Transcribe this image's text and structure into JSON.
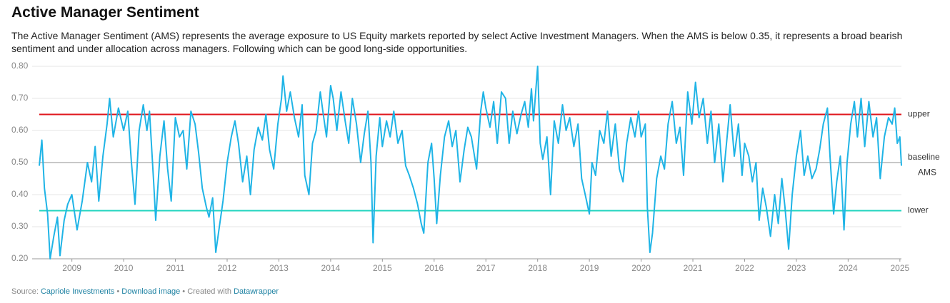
{
  "chart_data": {
    "type": "line",
    "title": "Active Manager Sentiment",
    "subtitle": "The Active Manager Sentiment (AMS) represents the average exposure to US Equity markets reported by select Active Investment Managers. When the AMS is below 0.35, it represents a broad bearish sentiment and under allocation across managers. Following which can be good long-side opportunities.",
    "footer": {
      "source_label": "Source:",
      "source": "Capriole Investments",
      "separator": "•",
      "download": "Download image",
      "credit_prefix": "Created with",
      "credit": "Datawrapper"
    },
    "x": [
      2008.37,
      2008.42,
      2008.47,
      2008.53,
      2008.58,
      2008.65,
      2008.72,
      2008.77,
      2008.85,
      2008.92,
      2009.0,
      2009.1,
      2009.2,
      2009.3,
      2009.38,
      2009.45,
      2009.52,
      2009.6,
      2009.68,
      2009.73,
      2009.8,
      2009.9,
      2010.0,
      2010.08,
      2010.15,
      2010.22,
      2010.3,
      2010.38,
      2010.45,
      2010.5,
      2010.58,
      2010.62,
      2010.7,
      2010.78,
      2010.85,
      2010.92,
      2011.0,
      2011.08,
      2011.15,
      2011.22,
      2011.3,
      2011.38,
      2011.45,
      2011.52,
      2011.6,
      2011.65,
      2011.72,
      2011.78,
      2011.85,
      2011.92,
      2012.0,
      2012.08,
      2012.15,
      2012.22,
      2012.3,
      2012.38,
      2012.45,
      2012.52,
      2012.6,
      2012.68,
      2012.75,
      2012.82,
      2012.9,
      2012.98,
      2013.05,
      2013.08,
      2013.15,
      2013.22,
      2013.3,
      2013.38,
      2013.45,
      2013.5,
      2013.58,
      2013.65,
      2013.72,
      2013.8,
      2013.85,
      2013.92,
      2014.0,
      2014.05,
      2014.12,
      2014.2,
      2014.28,
      2014.35,
      2014.42,
      2014.5,
      2014.58,
      2014.65,
      2014.72,
      2014.78,
      2014.82,
      2014.88,
      2014.95,
      2015.0,
      2015.08,
      2015.15,
      2015.22,
      2015.3,
      2015.38,
      2015.45,
      2015.52,
      2015.6,
      2015.68,
      2015.75,
      2015.8,
      2015.88,
      2015.95,
      2016.0,
      2016.05,
      2016.12,
      2016.2,
      2016.28,
      2016.35,
      2016.42,
      2016.5,
      2016.58,
      2016.65,
      2016.72,
      2016.82,
      2016.9,
      2016.95,
      2017.0,
      2017.08,
      2017.15,
      2017.22,
      2017.3,
      2017.38,
      2017.45,
      2017.52,
      2017.6,
      2017.68,
      2017.75,
      2017.82,
      2017.88,
      2017.92,
      2018.0,
      2018.05,
      2018.1,
      2018.18,
      2018.25,
      2018.32,
      2018.4,
      2018.48,
      2018.55,
      2018.62,
      2018.7,
      2018.78,
      2018.85,
      2018.92,
      2019.0,
      2019.05,
      2019.12,
      2019.2,
      2019.28,
      2019.35,
      2019.42,
      2019.5,
      2019.58,
      2019.65,
      2019.72,
      2019.8,
      2019.88,
      2019.95,
      2020.0,
      2020.08,
      2020.12,
      2020.17,
      2020.22,
      2020.3,
      2020.38,
      2020.45,
      2020.52,
      2020.6,
      2020.68,
      2020.75,
      2020.82,
      2020.9,
      2020.98,
      2021.05,
      2021.12,
      2021.2,
      2021.28,
      2021.35,
      2021.42,
      2021.5,
      2021.58,
      2021.65,
      2021.72,
      2021.8,
      2021.88,
      2021.95,
      2022.0,
      2022.08,
      2022.15,
      2022.22,
      2022.28,
      2022.35,
      2022.42,
      2022.5,
      2022.58,
      2022.65,
      2022.72,
      2022.78,
      2022.85,
      2022.92,
      2023.0,
      2023.08,
      2023.15,
      2023.22,
      2023.3,
      2023.38,
      2023.45,
      2023.52,
      2023.6,
      2023.65,
      2023.72,
      2023.78,
      2023.85,
      2023.92,
      2023.98,
      2024.05,
      2024.12,
      2024.18,
      2024.25,
      2024.32,
      2024.4,
      2024.48,
      2024.55,
      2024.62,
      2024.7,
      2024.78,
      2024.85,
      2024.9,
      2024.95,
      2025.0,
      2025.03
    ],
    "series": [
      {
        "name": "AMS",
        "color": "#1fb4e6",
        "values": [
          0.49,
          0.57,
          0.42,
          0.34,
          0.2,
          0.27,
          0.33,
          0.21,
          0.32,
          0.37,
          0.4,
          0.29,
          0.38,
          0.5,
          0.44,
          0.55,
          0.38,
          0.52,
          0.62,
          0.7,
          0.58,
          0.67,
          0.6,
          0.66,
          0.5,
          0.37,
          0.6,
          0.68,
          0.6,
          0.66,
          0.44,
          0.32,
          0.52,
          0.63,
          0.48,
          0.38,
          0.64,
          0.58,
          0.6,
          0.48,
          0.66,
          0.62,
          0.53,
          0.42,
          0.36,
          0.33,
          0.39,
          0.22,
          0.3,
          0.38,
          0.5,
          0.58,
          0.63,
          0.56,
          0.44,
          0.52,
          0.4,
          0.54,
          0.61,
          0.57,
          0.65,
          0.54,
          0.48,
          0.62,
          0.7,
          0.77,
          0.66,
          0.72,
          0.64,
          0.58,
          0.68,
          0.46,
          0.4,
          0.56,
          0.6,
          0.72,
          0.66,
          0.58,
          0.74,
          0.7,
          0.6,
          0.72,
          0.63,
          0.56,
          0.7,
          0.62,
          0.5,
          0.59,
          0.66,
          0.5,
          0.25,
          0.52,
          0.64,
          0.55,
          0.63,
          0.58,
          0.66,
          0.56,
          0.6,
          0.49,
          0.46,
          0.42,
          0.37,
          0.31,
          0.28,
          0.5,
          0.56,
          0.45,
          0.31,
          0.46,
          0.58,
          0.63,
          0.55,
          0.6,
          0.44,
          0.54,
          0.61,
          0.58,
          0.48,
          0.66,
          0.72,
          0.67,
          0.61,
          0.69,
          0.56,
          0.72,
          0.7,
          0.56,
          0.66,
          0.59,
          0.65,
          0.69,
          0.61,
          0.73,
          0.63,
          0.8,
          0.56,
          0.51,
          0.58,
          0.4,
          0.63,
          0.56,
          0.68,
          0.6,
          0.64,
          0.55,
          0.62,
          0.45,
          0.4,
          0.34,
          0.5,
          0.46,
          0.6,
          0.56,
          0.66,
          0.52,
          0.62,
          0.48,
          0.44,
          0.56,
          0.64,
          0.58,
          0.66,
          0.58,
          0.62,
          0.36,
          0.22,
          0.28,
          0.45,
          0.52,
          0.48,
          0.62,
          0.69,
          0.56,
          0.61,
          0.46,
          0.72,
          0.62,
          0.75,
          0.64,
          0.7,
          0.56,
          0.66,
          0.5,
          0.62,
          0.44,
          0.56,
          0.68,
          0.52,
          0.62,
          0.46,
          0.56,
          0.52,
          0.44,
          0.5,
          0.32,
          0.42,
          0.36,
          0.27,
          0.4,
          0.31,
          0.45,
          0.36,
          0.23,
          0.4,
          0.52,
          0.6,
          0.46,
          0.52,
          0.45,
          0.48,
          0.54,
          0.62,
          0.67,
          0.52,
          0.34,
          0.44,
          0.52,
          0.29,
          0.5,
          0.62,
          0.69,
          0.58,
          0.7,
          0.55,
          0.69,
          0.58,
          0.64,
          0.45,
          0.58,
          0.64,
          0.62,
          0.67,
          0.56,
          0.58,
          0.49
        ]
      }
    ],
    "reference_lines": [
      {
        "name": "upper",
        "value": 0.65,
        "color": "#e0161c"
      },
      {
        "name": "baseline",
        "value": 0.5,
        "color": "#c8c8c8"
      },
      {
        "name": "lower",
        "value": 0.35,
        "color": "#1fd4bf"
      }
    ],
    "xlim": [
      2008.37,
      2025.03
    ],
    "xticks": [
      2009,
      2010,
      2011,
      2012,
      2013,
      2014,
      2015,
      2016,
      2017,
      2018,
      2019,
      2020,
      2021,
      2022,
      2023,
      2024,
      2025
    ],
    "ylim": [
      0.2,
      0.8
    ],
    "yticks": [
      {
        "value": 0.2,
        "label": "0.20"
      },
      {
        "value": 0.3,
        "label": "0.30"
      },
      {
        "value": 0.4,
        "label": "0.40"
      },
      {
        "value": 0.5,
        "label": "0.50"
      },
      {
        "value": 0.6,
        "label": "0.60"
      },
      {
        "value": 0.7,
        "label": "0.70"
      },
      {
        "value": 0.8,
        "label": "0.80"
      }
    ],
    "grid": true
  }
}
